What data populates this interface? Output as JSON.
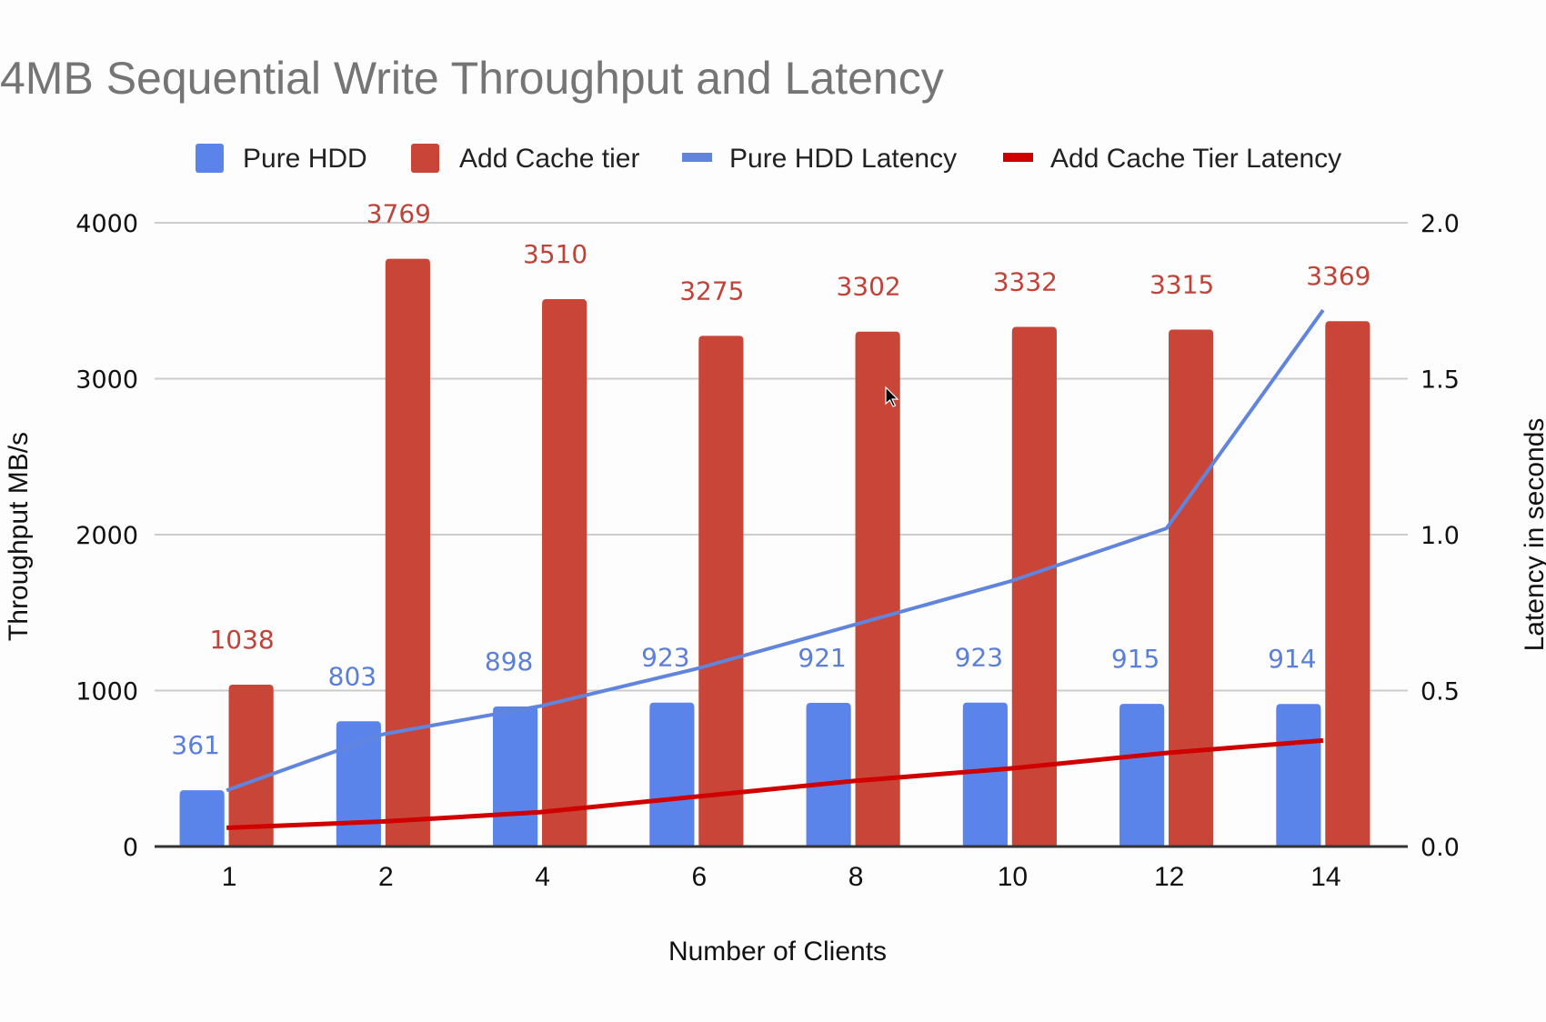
{
  "chart_data": {
    "type": "bar",
    "title": "4MB Sequential Write Throughput and Latency",
    "xlabel": "Number of Clients",
    "ylabel": "Throughput MB/s",
    "y2label": "Latency in seconds",
    "categories": [
      "1",
      "2",
      "4",
      "6",
      "8",
      "10",
      "12",
      "14"
    ],
    "ylim": [
      0,
      4000
    ],
    "yticks": [
      "0",
      "1000",
      "2000",
      "3000",
      "4000"
    ],
    "y2lim": [
      0,
      2.0
    ],
    "y2ticks": [
      "0.0",
      "0.5",
      "1.0",
      "1.5",
      "2.0"
    ],
    "grid": true,
    "legend_position": "top",
    "series": [
      {
        "name": "Pure HDD",
        "kind": "bar",
        "axis": "left",
        "color": "#5b84ea",
        "label_color": "#5b7fd9",
        "values": [
          361,
          803,
          898,
          923,
          921,
          923,
          915,
          914
        ]
      },
      {
        "name": "Add Cache tier",
        "kind": "bar",
        "axis": "left",
        "color": "#c94537",
        "label_color": "#c0433a",
        "values": [
          1038,
          3769,
          3510,
          3275,
          3302,
          3332,
          3315,
          3369
        ]
      },
      {
        "name": "Pure HDD Latency",
        "kind": "line",
        "axis": "right",
        "color": "#6185dc",
        "values": [
          0.18,
          0.36,
          0.45,
          0.57,
          0.71,
          0.85,
          1.02,
          1.72
        ]
      },
      {
        "name": "Add Cache Tier Latency",
        "kind": "line",
        "axis": "right",
        "color": "#d10000",
        "values": [
          0.06,
          0.08,
          0.11,
          0.16,
          0.21,
          0.25,
          0.3,
          0.34
        ]
      }
    ]
  }
}
